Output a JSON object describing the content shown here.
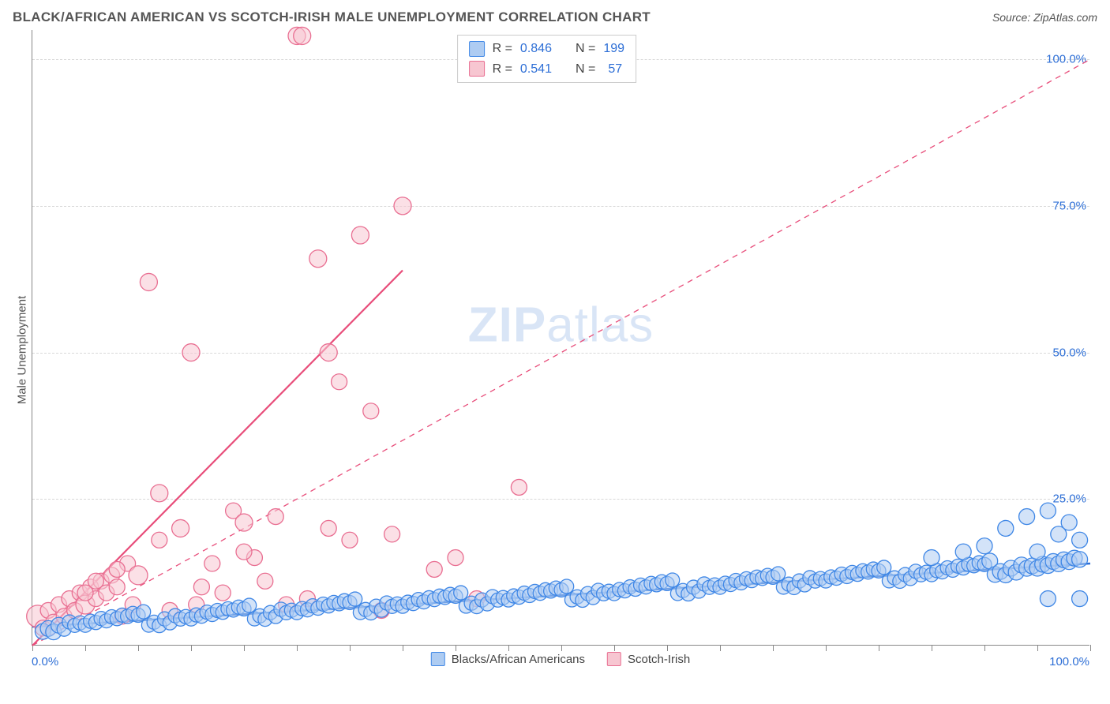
{
  "header": {
    "title": "BLACK/AFRICAN AMERICAN VS SCOTCH-IRISH MALE UNEMPLOYMENT CORRELATION CHART",
    "source_prefix": "Source: ",
    "source_name": "ZipAtlas.com"
  },
  "axes": {
    "ylabel": "Male Unemployment",
    "xlim": [
      0,
      100
    ],
    "ylim": [
      0,
      105
    ],
    "x_min_label": "0.0%",
    "x_max_label": "100.0%",
    "xtick_positions": [
      0,
      5,
      10,
      15,
      20,
      25,
      30,
      35,
      40,
      45,
      50,
      55,
      60,
      65,
      70,
      75,
      80,
      85,
      90,
      95,
      100
    ],
    "y_gridlines": [
      25,
      50,
      75,
      100
    ],
    "y_labels": [
      {
        "v": 25,
        "t": "25.0%"
      },
      {
        "v": 50,
        "t": "50.0%"
      },
      {
        "v": 75,
        "t": "75.0%"
      },
      {
        "v": 100,
        "t": "100.0%"
      }
    ],
    "axis_label_color": "#2e6fd6"
  },
  "colors": {
    "blue_fill": "#aeccf2",
    "blue_stroke": "#3f87e6",
    "pink_fill": "#f7c6d1",
    "pink_stroke": "#e96f92",
    "blue_line": "#2e6fd6",
    "pink_line": "#e84d7a",
    "grid": "#d8d8d8",
    "text": "#555555"
  },
  "legend_top": {
    "rows": [
      {
        "swatch": "blue",
        "r_label": "R = ",
        "r": "0.846",
        "n_label": "N = ",
        "n": "199"
      },
      {
        "swatch": "pink",
        "r_label": "R = ",
        "r": "0.541",
        "n_label": "N = ",
        "n": "57"
      }
    ]
  },
  "legend_bottom": {
    "items": [
      {
        "swatch": "blue",
        "label": "Blacks/African Americans"
      },
      {
        "swatch": "pink",
        "label": "Scotch-Irish"
      }
    ]
  },
  "watermark": {
    "zip": "ZIP",
    "rest": "atlas"
  },
  "series": {
    "blue_line": {
      "x1": 0,
      "y1": 3.2,
      "x2": 100,
      "y2": 14.0
    },
    "pink_line": {
      "x1": 0,
      "y1": 0,
      "x2": 35,
      "y2": 64
    },
    "diagonal": {
      "x1": 0,
      "y1": 0,
      "x2": 100,
      "y2": 100
    },
    "marker_radius": 9,
    "marker_border_radius_large": 12,
    "blue_points_base": [
      [
        1,
        4
      ],
      [
        2,
        4.5
      ],
      [
        3,
        3.8
      ],
      [
        4,
        5
      ],
      [
        5,
        4.2
      ],
      [
        6,
        5.5
      ],
      [
        7,
        4.8
      ],
      [
        8,
        5.2
      ],
      [
        9,
        4.7
      ],
      [
        10,
        5.4
      ],
      [
        11,
        5.1
      ],
      [
        12,
        5.8
      ],
      [
        13,
        5.3
      ],
      [
        14,
        6.0
      ],
      [
        15,
        5.6
      ],
      [
        16,
        6.2
      ],
      [
        17,
        5.9
      ],
      [
        18,
        6.4
      ],
      [
        19,
        6.0
      ],
      [
        20,
        6.6
      ]
    ],
    "pink_points": [
      [
        0.5,
        5,
        14
      ],
      [
        1,
        3,
        10
      ],
      [
        1.5,
        6,
        10
      ],
      [
        2,
        4,
        10
      ],
      [
        2.5,
        7,
        10
      ],
      [
        3,
        5,
        10
      ],
      [
        3.5,
        8,
        10
      ],
      [
        4,
        6,
        10
      ],
      [
        4.5,
        9,
        10
      ],
      [
        5,
        7,
        12
      ],
      [
        5.5,
        10,
        10
      ],
      [
        6,
        8,
        10
      ],
      [
        6.5,
        11,
        10
      ],
      [
        7,
        9,
        10
      ],
      [
        7.5,
        12,
        10
      ],
      [
        8,
        10,
        10
      ],
      [
        8.5,
        5,
        10
      ],
      [
        9,
        14,
        10
      ],
      [
        9.5,
        7,
        10
      ],
      [
        10,
        12,
        12
      ],
      [
        11,
        62,
        11
      ],
      [
        12,
        26,
        11
      ],
      [
        13,
        6,
        10
      ],
      [
        14,
        20,
        11
      ],
      [
        15,
        50,
        11
      ],
      [
        15.5,
        7,
        10
      ],
      [
        16,
        10,
        10
      ],
      [
        17,
        14,
        10
      ],
      [
        18,
        9,
        10
      ],
      [
        19,
        23,
        10
      ],
      [
        20,
        21,
        11
      ],
      [
        21,
        15,
        10
      ],
      [
        22,
        11,
        10
      ],
      [
        23,
        22,
        10
      ],
      [
        24,
        7,
        10
      ],
      [
        25,
        104,
        11
      ],
      [
        25.5,
        104,
        11
      ],
      [
        26,
        8,
        10
      ],
      [
        27,
        66,
        11
      ],
      [
        28,
        50,
        11
      ],
      [
        29,
        45,
        10
      ],
      [
        30,
        18,
        10
      ],
      [
        31,
        70,
        11
      ],
      [
        32,
        40,
        10
      ],
      [
        33,
        6,
        10
      ],
      [
        34,
        19,
        10
      ],
      [
        35,
        75,
        11
      ],
      [
        38,
        13,
        10
      ],
      [
        40,
        15,
        10
      ],
      [
        42,
        8,
        10
      ],
      [
        46,
        27,
        10
      ],
      [
        28,
        20,
        10
      ],
      [
        20,
        16,
        10
      ],
      [
        12,
        18,
        10
      ],
      [
        8,
        13,
        10
      ],
      [
        6,
        11,
        10
      ],
      [
        5,
        9,
        10
      ]
    ]
  }
}
